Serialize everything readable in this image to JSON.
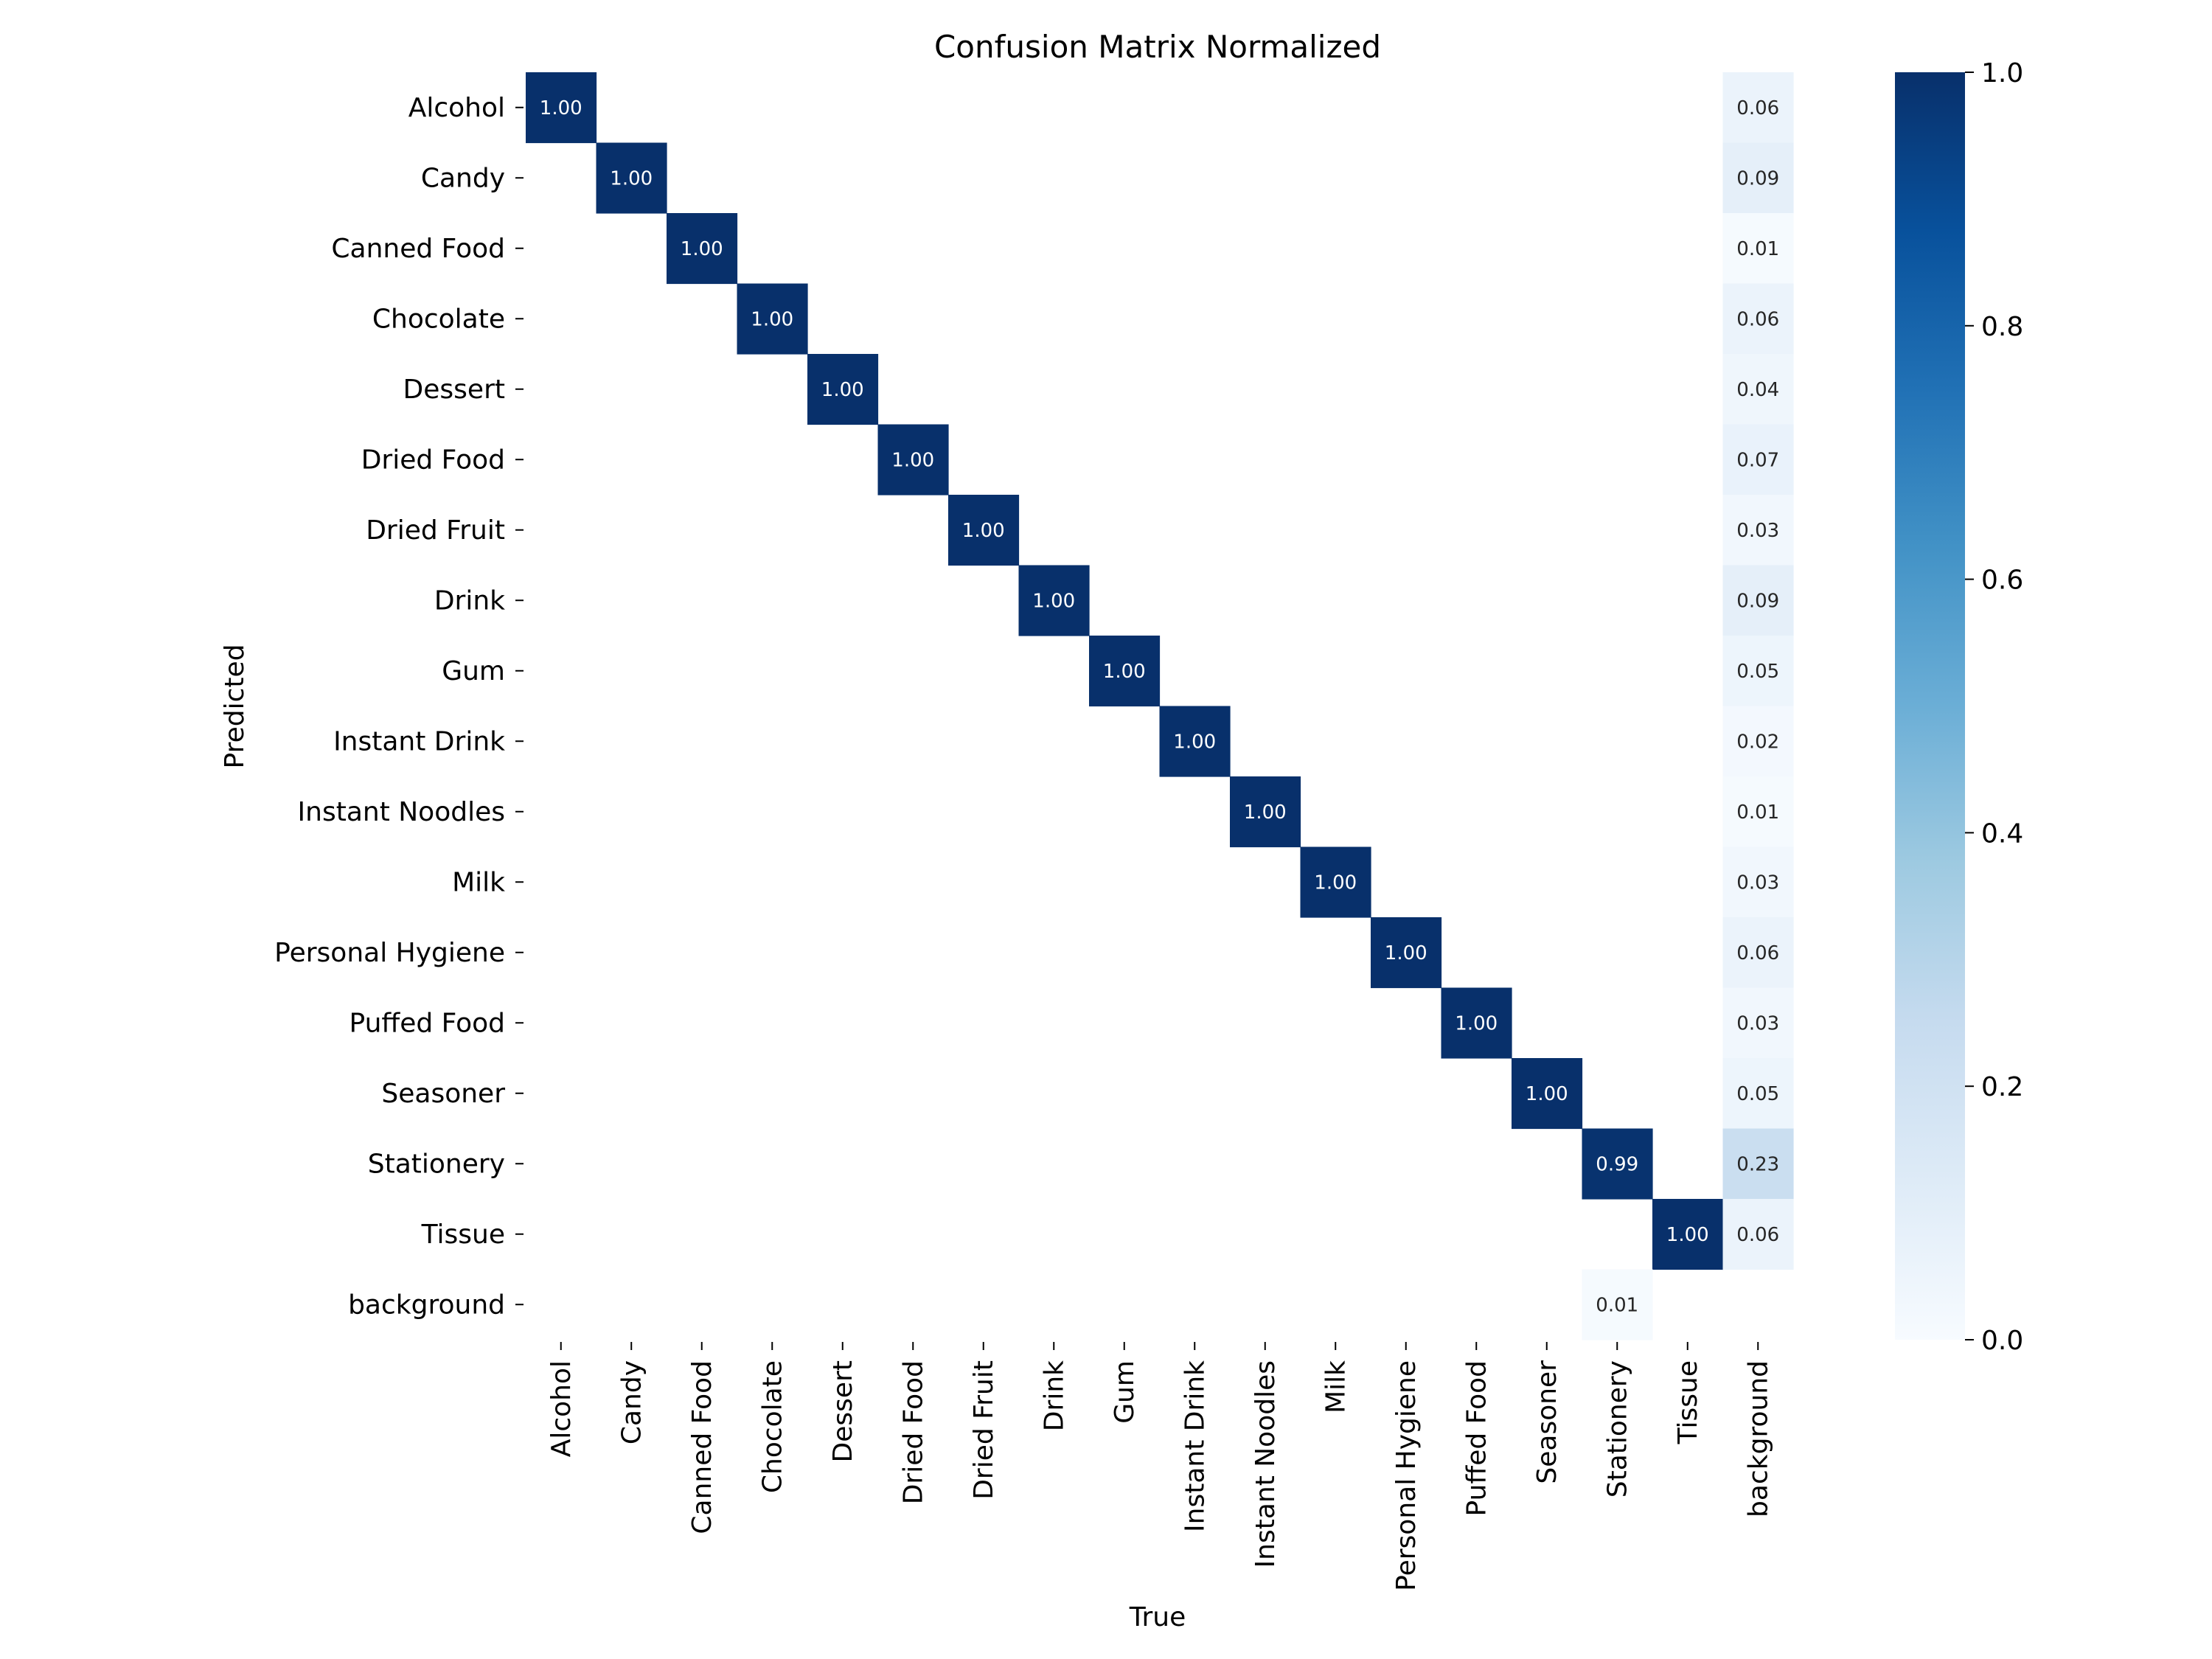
{
  "chart_data": {
    "type": "heatmap",
    "title": "Confusion Matrix Normalized",
    "xlabel": "True",
    "ylabel": "Predicted",
    "x_categories": [
      "Alcohol",
      "Candy",
      "Canned Food",
      "Chocolate",
      "Dessert",
      "Dried Food",
      "Dried Fruit",
      "Drink",
      "Gum",
      "Instant Drink",
      "Instant Noodles",
      "Milk",
      "Personal Hygiene",
      "Puffed Food",
      "Seasoner",
      "Stationery",
      "Tissue",
      "background"
    ],
    "y_categories": [
      "Alcohol",
      "Candy",
      "Canned Food",
      "Chocolate",
      "Dessert",
      "Dried Food",
      "Dried Fruit",
      "Drink",
      "Gum",
      "Instant Drink",
      "Instant Noodles",
      "Milk",
      "Personal Hygiene",
      "Puffed Food",
      "Seasoner",
      "Stationery",
      "Tissue",
      "background"
    ],
    "cells": [
      {
        "row": 0,
        "col": 0,
        "value": 1.0,
        "label": "1.00"
      },
      {
        "row": 1,
        "col": 1,
        "value": 1.0,
        "label": "1.00"
      },
      {
        "row": 2,
        "col": 2,
        "value": 1.0,
        "label": "1.00"
      },
      {
        "row": 3,
        "col": 3,
        "value": 1.0,
        "label": "1.00"
      },
      {
        "row": 4,
        "col": 4,
        "value": 1.0,
        "label": "1.00"
      },
      {
        "row": 5,
        "col": 5,
        "value": 1.0,
        "label": "1.00"
      },
      {
        "row": 6,
        "col": 6,
        "value": 1.0,
        "label": "1.00"
      },
      {
        "row": 7,
        "col": 7,
        "value": 1.0,
        "label": "1.00"
      },
      {
        "row": 8,
        "col": 8,
        "value": 1.0,
        "label": "1.00"
      },
      {
        "row": 9,
        "col": 9,
        "value": 1.0,
        "label": "1.00"
      },
      {
        "row": 10,
        "col": 10,
        "value": 1.0,
        "label": "1.00"
      },
      {
        "row": 11,
        "col": 11,
        "value": 1.0,
        "label": "1.00"
      },
      {
        "row": 12,
        "col": 12,
        "value": 1.0,
        "label": "1.00"
      },
      {
        "row": 13,
        "col": 13,
        "value": 1.0,
        "label": "1.00"
      },
      {
        "row": 14,
        "col": 14,
        "value": 1.0,
        "label": "1.00"
      },
      {
        "row": 15,
        "col": 15,
        "value": 0.99,
        "label": "0.99"
      },
      {
        "row": 16,
        "col": 16,
        "value": 1.0,
        "label": "1.00"
      },
      {
        "row": 0,
        "col": 17,
        "value": 0.06,
        "label": "0.06"
      },
      {
        "row": 1,
        "col": 17,
        "value": 0.09,
        "label": "0.09"
      },
      {
        "row": 2,
        "col": 17,
        "value": 0.01,
        "label": "0.01"
      },
      {
        "row": 3,
        "col": 17,
        "value": 0.06,
        "label": "0.06"
      },
      {
        "row": 4,
        "col": 17,
        "value": 0.04,
        "label": "0.04"
      },
      {
        "row": 5,
        "col": 17,
        "value": 0.07,
        "label": "0.07"
      },
      {
        "row": 6,
        "col": 17,
        "value": 0.03,
        "label": "0.03"
      },
      {
        "row": 7,
        "col": 17,
        "value": 0.09,
        "label": "0.09"
      },
      {
        "row": 8,
        "col": 17,
        "value": 0.05,
        "label": "0.05"
      },
      {
        "row": 9,
        "col": 17,
        "value": 0.02,
        "label": "0.02"
      },
      {
        "row": 10,
        "col": 17,
        "value": 0.01,
        "label": "0.01"
      },
      {
        "row": 11,
        "col": 17,
        "value": 0.03,
        "label": "0.03"
      },
      {
        "row": 12,
        "col": 17,
        "value": 0.06,
        "label": "0.06"
      },
      {
        "row": 13,
        "col": 17,
        "value": 0.03,
        "label": "0.03"
      },
      {
        "row": 14,
        "col": 17,
        "value": 0.05,
        "label": "0.05"
      },
      {
        "row": 15,
        "col": 17,
        "value": 0.23,
        "label": "0.23"
      },
      {
        "row": 16,
        "col": 17,
        "value": 0.06,
        "label": "0.06"
      },
      {
        "row": 17,
        "col": 15,
        "value": 0.01,
        "label": "0.01"
      }
    ],
    "colorbar": {
      "range": [
        0.0,
        1.0
      ],
      "ticks": [
        "0.0",
        "0.2",
        "0.4",
        "0.6",
        "0.8",
        "1.0"
      ],
      "colormap": "Blues"
    },
    "grid": false
  },
  "colors": {
    "cmap_low": "#f7fbff",
    "cmap_high": "#08306b",
    "text_dark": "#262626",
    "text_light": "#ffffff"
  }
}
